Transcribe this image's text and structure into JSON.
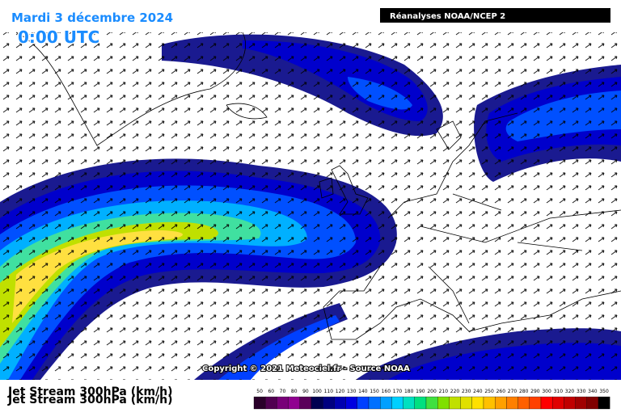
{
  "header": {
    "date": "Mardi 3 décembre 2024",
    "time": "0:00 UTC",
    "source": "Réanalyses NOAA/NCEP 2"
  },
  "copyright": "Copyright © 2021 Meteociel.fr - Source NOAA",
  "legend": {
    "title": "Jet Stream 300hPa (km/h)",
    "values": [
      50,
      60,
      70,
      80,
      90,
      100,
      110,
      120,
      130,
      140,
      150,
      160,
      170,
      180,
      190,
      200,
      210,
      220,
      230,
      240,
      250,
      260,
      270,
      280,
      290,
      300,
      310,
      320,
      330,
      340,
      350
    ],
    "colors": [
      "#2a002a",
      "#500050",
      "#780078",
      "#900090",
      "#5a005a",
      "#000050",
      "#000080",
      "#0000b0",
      "#0000e0",
      "#0040ff",
      "#0070ff",
      "#00a0ff",
      "#00d0ff",
      "#00e0c0",
      "#00e080",
      "#40e040",
      "#80e000",
      "#c0e000",
      "#e0e000",
      "#ffe000",
      "#ffc000",
      "#ffa000",
      "#ff8000",
      "#ff6000",
      "#ff4000",
      "#ff0000",
      "#e00000",
      "#c00000",
      "#a00000",
      "#800000",
      "#000000"
    ]
  }
}
